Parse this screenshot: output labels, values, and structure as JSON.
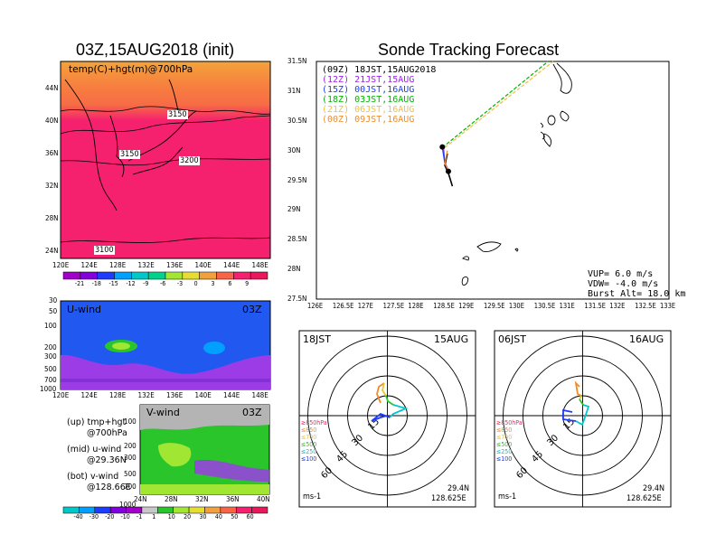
{
  "colors": {
    "hot": "#f5216e",
    "warm": "#f76c45",
    "orange": "#f3a33b",
    "uwind_blue": "#2159f0",
    "uwind_purple": "#9b3ce6",
    "vgray": "#b4b4b4",
    "vgreen": "#29c52b"
  },
  "left_top": {
    "title": "03Z,15AUG2018 (init)",
    "label": "temp(C)+hgt(m)@700hPa",
    "lat_ticks": [
      "44N",
      "40N",
      "36N",
      "32N",
      "28N",
      "24N"
    ],
    "lon_ticks": [
      "120E",
      "124E",
      "128E",
      "132E",
      "136E",
      "140E",
      "144E",
      "148E"
    ],
    "contours": [
      "3150",
      "3150",
      "3200",
      "3100"
    ],
    "colorbar": {
      "labels": [
        "-21",
        "-18",
        "-15",
        "-12",
        "-9",
        "-6",
        "-3",
        "0",
        "3",
        "6",
        "9"
      ],
      "colors": [
        "#a000c8",
        "#8200dc",
        "#1e3cff",
        "#00a0ff",
        "#00c8c8",
        "#00d28c",
        "#a0e632",
        "#e6dc32",
        "#f0a03c",
        "#fa6446",
        "#f5216e",
        "#e8185a"
      ]
    }
  },
  "u_wind": {
    "label": "U-wind",
    "time": "03Z",
    "p_ticks": [
      "30",
      "50",
      "100",
      "200",
      "300",
      "500",
      "700",
      "1000"
    ],
    "lon_ticks": [
      "120E",
      "124E",
      "128E",
      "132E",
      "136E",
      "140E",
      "144E",
      "148E"
    ]
  },
  "v_wind": {
    "label": "V-wind",
    "time": "03Z",
    "p_ticks": [
      "100",
      "200",
      "300",
      "500",
      "700",
      "1000"
    ],
    "lat_ticks": [
      "24N",
      "28N",
      "32N",
      "36N",
      "40N"
    ],
    "colorbar": {
      "labels": [
        "-40",
        "-30",
        "-20",
        "-10",
        "-1",
        "1",
        "10",
        "20",
        "30",
        "40",
        "50",
        "60"
      ],
      "colors": [
        "#00c8c8",
        "#00a0ff",
        "#1e3cff",
        "#8200dc",
        "#a000c8",
        "#c8c8c8",
        "#29c52b",
        "#a0e632",
        "#e6dc32",
        "#f0a03c",
        "#fa6446",
        "#f5216e",
        "#e8185a"
      ]
    }
  },
  "notes": {
    "up_1": "(up) tmp+hgt",
    "up_2": "@700hPa",
    "mid_1": "(mid) u-wind",
    "mid_2": "@29.36N",
    "bot_1": "(bot) v-wind",
    "bot_2": "@128.66E"
  },
  "tracking": {
    "title": "Sonde Tracking Forecast",
    "lat_ticks": [
      "31.5N",
      "31N",
      "30.5N",
      "30N",
      "29.5N",
      "29N",
      "28.5N",
      "28N",
      "27.5N"
    ],
    "lon_ticks": [
      "126E",
      "126.5E",
      "127E",
      "127.5E",
      "128E",
      "128.5E",
      "129E",
      "129.5E",
      "130E",
      "130.5E",
      "131E",
      "131.5E",
      "132E",
      "132.5E",
      "133E"
    ],
    "legend": [
      {
        "text": "(09Z) 18JST,15AUG2018",
        "color": "#000000"
      },
      {
        "text": "(12Z) 21JST,15AUG",
        "color": "#a020f0"
      },
      {
        "text": "(15Z) 00JST,16AUG",
        "color": "#1e3cff"
      },
      {
        "text": "(18Z) 03JST,16AUG",
        "color": "#00b400"
      },
      {
        "text": "(21Z) 06JST,16AUG",
        "color": "#f0c040"
      },
      {
        "text": "(00Z) 09JST,16AUG",
        "color": "#f08c28"
      }
    ],
    "params": {
      "vup": "VUP= 6.0 m/s",
      "vdw": "VDW= -4.0 m/s",
      "burst": "Burst Alt= 18.0 km"
    }
  },
  "hodo1": {
    "time": "18JST",
    "date": "15AUG",
    "lat": "29.4N",
    "lon": "128.625E",
    "unit": "ms-1",
    "rings": [
      "15",
      "30",
      "45",
      "60"
    ],
    "levels": [
      {
        "t": "≥850hPa",
        "c": "#f5216e"
      },
      {
        "t": "≤850",
        "c": "#f08c28"
      },
      {
        "t": "≤700",
        "c": "#e6c832"
      },
      {
        "t": "≤500",
        "c": "#29c52b"
      },
      {
        "t": "≤250",
        "c": "#00c8c8"
      },
      {
        "t": "≤100",
        "c": "#1e3cff"
      }
    ]
  },
  "hodo2": {
    "time": "06JST",
    "date": "16AUG",
    "lat": "29.4N",
    "lon": "128.625E",
    "unit": "ms-1",
    "rings": [
      "15",
      "30",
      "45",
      "60"
    ],
    "levels": [
      {
        "t": "≥850hPa",
        "c": "#f5216e"
      },
      {
        "t": "≤850",
        "c": "#f08c28"
      },
      {
        "t": "≤700",
        "c": "#e6c832"
      },
      {
        "t": "≤500",
        "c": "#29c52b"
      },
      {
        "t": "≤250",
        "c": "#00c8c8"
      },
      {
        "t": "≤100",
        "c": "#1e3cff"
      }
    ]
  },
  "chart_data": [
    {
      "type": "heatmap",
      "title": "03Z,15AUG2018 (init)",
      "subtitle": "temp(C)+hgt(m)@700hPa",
      "xlabel": "",
      "ylabel": "",
      "xlim": [
        120,
        150
      ],
      "ylim": [
        22,
        47
      ],
      "contour_labels": [
        3150,
        3150,
        3200,
        3100
      ],
      "colorbar": [
        -21,
        -18,
        -15,
        -12,
        -9,
        -6,
        -3,
        0,
        3,
        6,
        9
      ]
    },
    {
      "type": "heatmap",
      "title": "U-wind",
      "xlim": [
        120,
        150
      ],
      "ylim": [
        1000,
        30
      ],
      "yticks": [
        30,
        50,
        100,
        200,
        300,
        500,
        700,
        1000
      ]
    },
    {
      "type": "heatmap",
      "title": "V-wind",
      "xlim": [
        24,
        40
      ],
      "ylim": [
        1000,
        100
      ],
      "yticks": [
        100,
        200,
        300,
        500,
        700,
        1000
      ],
      "colorbar": [
        -40,
        -30,
        -20,
        -10,
        -1,
        1,
        10,
        20,
        30,
        40,
        50,
        60
      ]
    },
    {
      "type": "line",
      "title": "Sonde Tracking Forecast",
      "xlim": [
        126,
        133
      ],
      "ylim": [
        27.5,
        31.5
      ],
      "series": [
        {
          "name": "(09Z) 18JST,15AUG2018",
          "x": [
            128.6,
            128.55,
            128.62,
            128.7
          ],
          "y": [
            29.95,
            29.75,
            29.62,
            29.4
          ]
        },
        {
          "name": "(12Z) 21JST,15AUG",
          "x": [
            128.52,
            128.55,
            128.63
          ],
          "y": [
            30.08,
            29.8,
            29.65
          ]
        },
        {
          "name": "(15Z) 00JST,16AUG",
          "x": [
            128.5,
            128.55,
            128.63
          ],
          "y": [
            30.05,
            29.78,
            29.65
          ]
        },
        {
          "name": "(18Z) 03JST,16AUG",
          "x": [
            128.5,
            130.6
          ],
          "y": [
            30.05,
            31.5
          ]
        },
        {
          "name": "(21Z) 06JST,16AUG",
          "x": [
            128.55,
            130.7
          ],
          "y": [
            30.05,
            31.5
          ]
        },
        {
          "name": "(00Z) 09JST,16AUG",
          "x": [
            128.6,
            128.55,
            128.63
          ],
          "y": [
            30.0,
            29.78,
            29.65
          ]
        }
      ]
    },
    {
      "type": "scatter",
      "title": "18JST 15AUG",
      "ring_labels": [
        15,
        30,
        45,
        60
      ]
    },
    {
      "type": "scatter",
      "title": "06JST 16AUG",
      "ring_labels": [
        15,
        30,
        45,
        60
      ]
    }
  ]
}
